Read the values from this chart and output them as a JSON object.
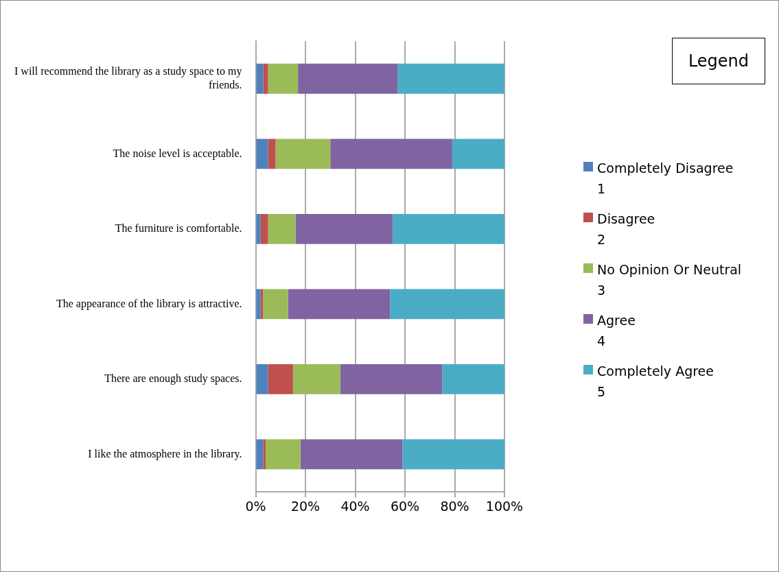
{
  "chart_data": {
    "type": "bar",
    "orientation": "horizontal",
    "stacked": true,
    "legend_title": "Legend",
    "legend": "right",
    "grid": "x",
    "categories": [
      "I will recommend the library as a study space to my friends.",
      "The noise level is acceptable.",
      "The furniture is comfortable.",
      "The appearance of the library is attractive.",
      "There are enough study spaces.",
      "I like the atmosphere in the library."
    ],
    "series": [
      {
        "name": "Completely Disagree\n1",
        "color": "#4f81bd",
        "values": [
          3,
          5,
          2,
          2,
          5,
          3
        ]
      },
      {
        "name": "Disagree\n2",
        "color": "#c0504d",
        "values": [
          2,
          3,
          3,
          1,
          10,
          1
        ]
      },
      {
        "name": "No Opinion Or Neutral\n3",
        "color": "#9bbb59",
        "values": [
          12,
          22,
          11,
          10,
          19,
          14
        ]
      },
      {
        "name": "Agree\n4",
        "color": "#8064a2",
        "values": [
          40,
          49,
          39,
          41,
          41,
          41
        ]
      },
      {
        "name": "Completely Agree\n5",
        "color": "#4bacc6",
        "values": [
          43,
          21,
          45,
          46,
          25,
          41
        ]
      }
    ],
    "xlim": [
      0,
      100
    ],
    "xticks": [
      {
        "value": 0,
        "label": "0%"
      },
      {
        "value": 20,
        "label": "20%"
      },
      {
        "value": 40,
        "label": "40%"
      },
      {
        "value": 60,
        "label": "60%"
      },
      {
        "value": 80,
        "label": "80%"
      },
      {
        "value": 100,
        "label": "100%"
      }
    ]
  }
}
